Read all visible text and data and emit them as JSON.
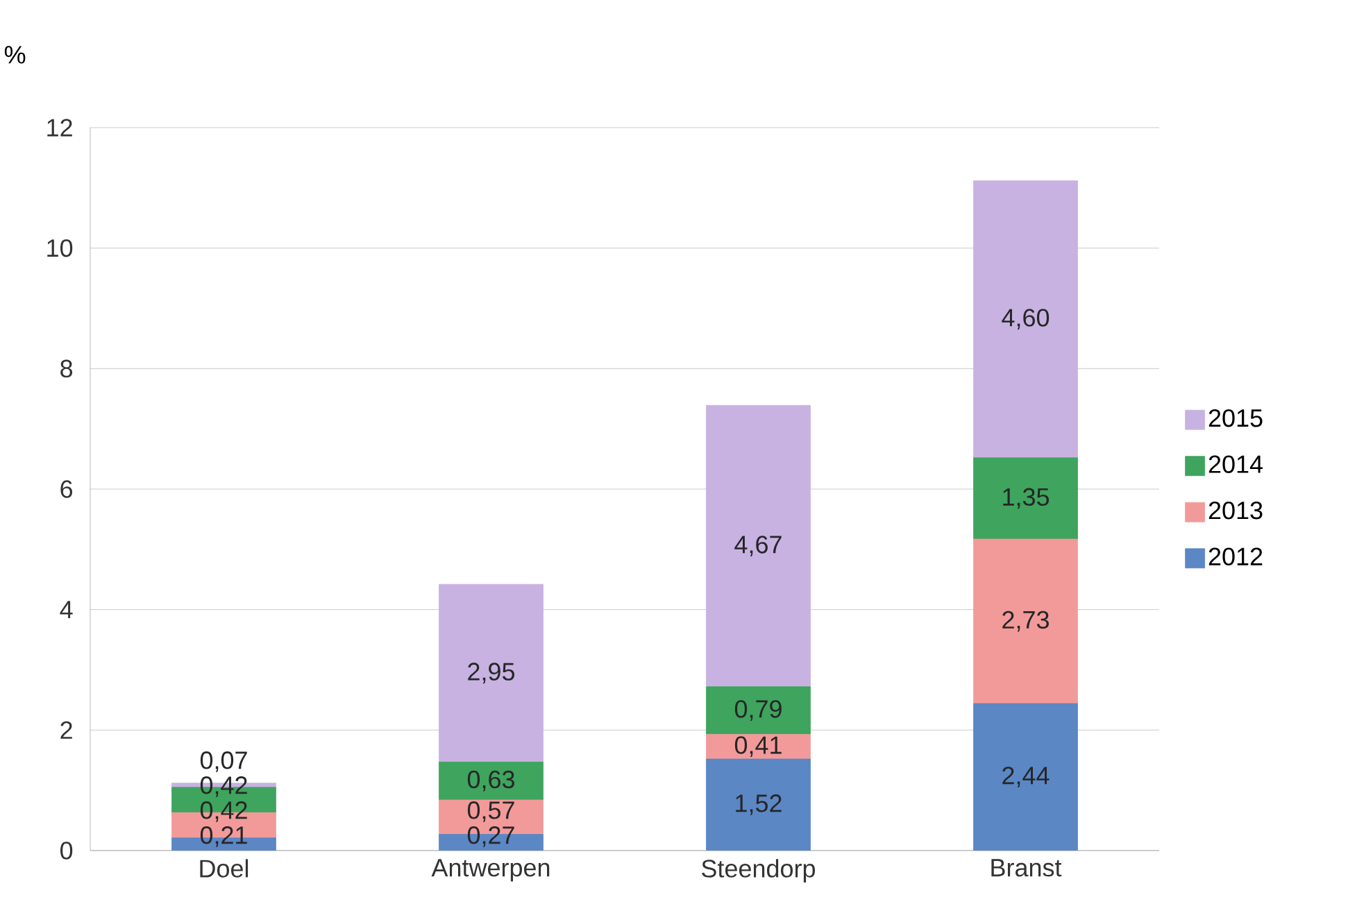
{
  "chart_data": {
    "type": "bar",
    "stacked": true,
    "ylabel": "%",
    "categories": [
      "Doel",
      "Antwerpen",
      "Steendorp",
      "Branst"
    ],
    "series": [
      {
        "name": "2012",
        "color": "#5b87c5",
        "values": [
          0.21,
          0.27,
          1.52,
          2.44
        ],
        "value_labels": [
          "0,21",
          "0,27",
          "1,52",
          "2,44"
        ]
      },
      {
        "name": "2013",
        "color": "#f29a9a",
        "values": [
          0.42,
          0.57,
          0.41,
          2.73
        ],
        "value_labels": [
          "0,42",
          "0,57",
          "0,41",
          "2,73"
        ]
      },
      {
        "name": "2014",
        "color": "#3fa45e",
        "values": [
          0.42,
          0.63,
          0.79,
          1.35
        ],
        "value_labels": [
          "0,42",
          "0,63",
          "0,79",
          "1,35"
        ]
      },
      {
        "name": "2015",
        "color": "#c8b2e2",
        "values": [
          0.07,
          2.95,
          4.67,
          4.6
        ],
        "value_labels": [
          "0,07",
          "2,95",
          "4,67",
          "4,60"
        ]
      }
    ],
    "ylim": [
      0,
      12
    ],
    "yticks": [
      0,
      2,
      4,
      6,
      8,
      10,
      12
    ],
    "grid": "y",
    "legend": "right"
  }
}
